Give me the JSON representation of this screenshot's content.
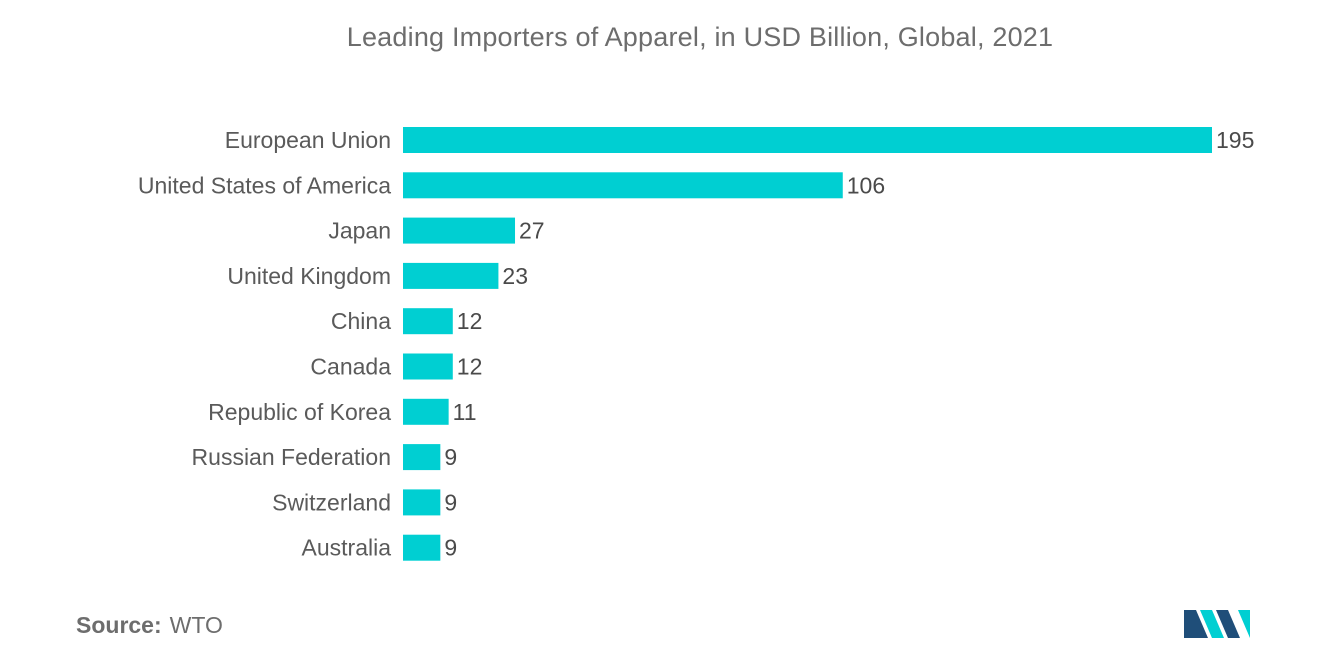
{
  "chart_data": {
    "type": "bar",
    "orientation": "horizontal",
    "title": "Leading Importers of Apparel, in USD Billion, Global, 2021",
    "xlabel": "",
    "ylabel": "",
    "categories": [
      "European Union",
      "United States of America",
      "Japan",
      "United Kingdom",
      "China",
      "Canada",
      "Republic of Korea",
      "Russian Federation",
      "Switzerland",
      "Australia"
    ],
    "values": [
      195,
      106,
      27,
      23,
      12,
      12,
      11,
      9,
      9,
      9
    ],
    "xlim": [
      0,
      195
    ],
    "grid": false,
    "legend": "none",
    "bar_color": "#00cfd2"
  },
  "source": {
    "label": "Source:",
    "value": "WTO"
  },
  "logo": {
    "icon": "mordor-intelligence-logo-icon",
    "colors": [
      "#1f4e79",
      "#00cfd2"
    ]
  }
}
